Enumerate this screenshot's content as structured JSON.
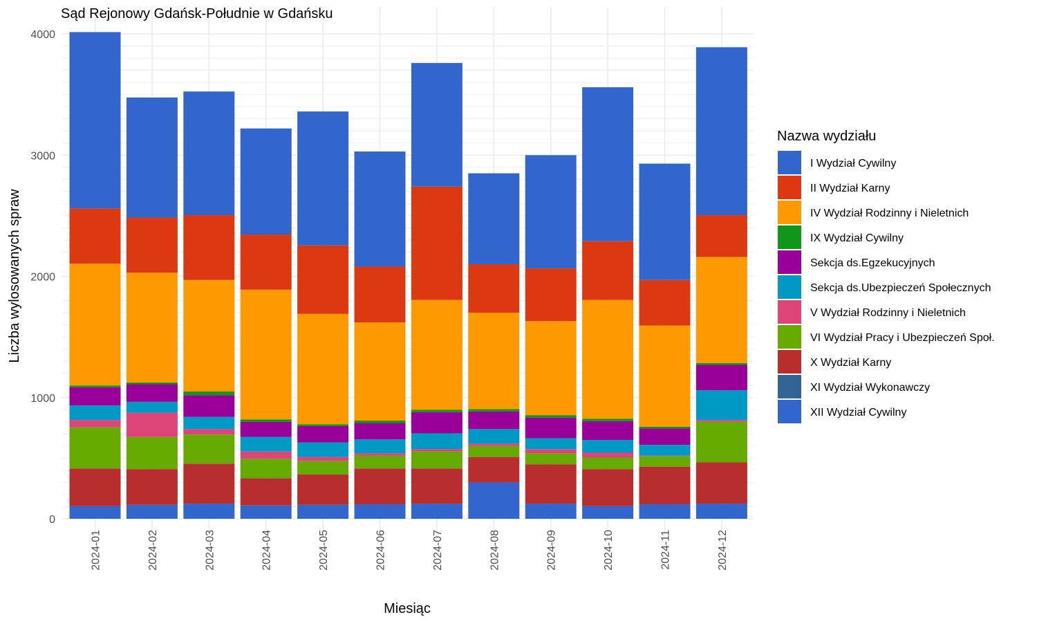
{
  "chart_data": {
    "type": "bar",
    "stacked": true,
    "title": "Sąd Rejonowy Gdańsk-Południe w Gdańsku",
    "xlabel": "Miesiąc",
    "ylabel": "Liczba wylosowanych spraw",
    "ylim": [
      0,
      4000
    ],
    "yticks": [
      0,
      1000,
      2000,
      3000,
      4000
    ],
    "grid": true,
    "legend_position": "right",
    "legend_title": "Nazwa wydziału",
    "categories": [
      "2024-01",
      "2024-02",
      "2024-03",
      "2024-04",
      "2024-05",
      "2024-06",
      "2024-07",
      "2024-08",
      "2024-09",
      "2024-10",
      "2024-11",
      "2024-12"
    ],
    "series": [
      {
        "name": "XII Wydział Cywilny",
        "color": "#3366CC",
        "values": [
          105,
          115,
          125,
          110,
          115,
          120,
          125,
          300,
          125,
          105,
          120,
          125
        ]
      },
      {
        "name": "XI Wydział Wykonawczy",
        "color": "#316395",
        "values": [
          0,
          0,
          0,
          0,
          0,
          0,
          0,
          0,
          0,
          0,
          0,
          0
        ]
      },
      {
        "name": "X Wydział Karny",
        "color": "#B82E2E",
        "values": [
          310,
          295,
          330,
          225,
          250,
          295,
          290,
          210,
          325,
          305,
          310,
          340
        ]
      },
      {
        "name": "VI Wydział Pracy i Ubezpieczeń Społ.",
        "color": "#66AA00",
        "values": [
          340,
          265,
          240,
          160,
          110,
          105,
          140,
          90,
          90,
          95,
          85,
          335
        ]
      },
      {
        "name": "V Wydział Rodzinny i Nieletnich",
        "color": "#DD4477",
        "values": [
          60,
          200,
          45,
          60,
          35,
          20,
          20,
          20,
          35,
          40,
          5,
          15
        ]
      },
      {
        "name": "Sekcja ds.Ubezpieczeń Społecznych",
        "color": "#0099C6",
        "values": [
          120,
          90,
          100,
          120,
          120,
          115,
          130,
          120,
          90,
          105,
          90,
          245
        ]
      },
      {
        "name": "Sekcja ds.Egzekucyjnych",
        "color": "#990099",
        "values": [
          150,
          145,
          180,
          125,
          135,
          135,
          175,
          145,
          170,
          155,
          135,
          210
        ]
      },
      {
        "name": "IX Wydział Cywilny",
        "color": "#109618",
        "values": [
          15,
          15,
          30,
          20,
          15,
          20,
          20,
          20,
          20,
          20,
          15,
          15
        ]
      },
      {
        "name": "IV Wydział Rodzinny i Nieletnich",
        "color": "#FF9900",
        "values": [
          1005,
          905,
          920,
          1070,
          910,
          810,
          905,
          795,
          775,
          980,
          835,
          875
        ]
      },
      {
        "name": "II Wydział Karny",
        "color": "#DC3912",
        "values": [
          455,
          455,
          535,
          455,
          565,
          460,
          935,
          400,
          435,
          485,
          375,
          345
        ]
      },
      {
        "name": "I Wydział Cywilny",
        "color": "#3366CC",
        "values": [
          1455,
          990,
          1020,
          875,
          1105,
          950,
          1020,
          750,
          935,
          1270,
          960,
          1385
        ]
      }
    ],
    "legend_order": [
      "I Wydział Cywilny",
      "II Wydział Karny",
      "IV Wydział Rodzinny i Nieletnich",
      "IX Wydział Cywilny",
      "Sekcja ds.Egzekucyjnych",
      "Sekcja ds.Ubezpieczeń Społecznych",
      "V Wydział Rodzinny i Nieletnich",
      "VI Wydział Pracy i Ubezpieczeń Społ.",
      "X Wydział Karny",
      "XI Wydział Wykonawczy",
      "XII Wydział Cywilny"
    ]
  }
}
